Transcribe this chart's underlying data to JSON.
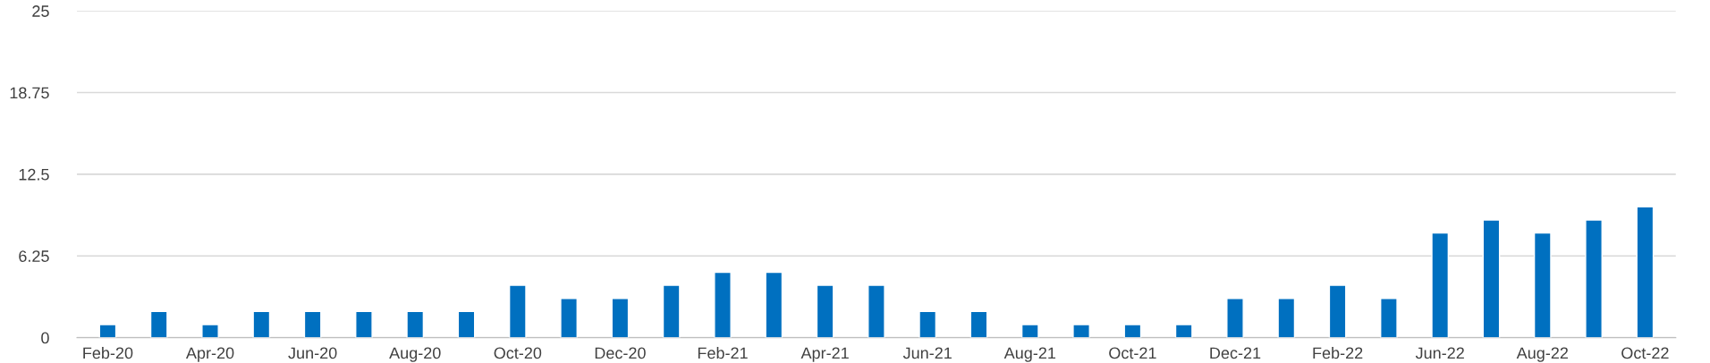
{
  "chart_data": {
    "type": "bar",
    "categories": [
      "Feb-20",
      null,
      "Apr-20",
      null,
      "Jun-20",
      null,
      "Aug-20",
      null,
      "Oct-20",
      null,
      "Dec-20",
      null,
      "Feb-21",
      null,
      "Apr-21",
      null,
      "Jun-21",
      null,
      "Aug-21",
      null,
      "Oct-21",
      null,
      "Dec-21",
      null,
      "Feb-22",
      null,
      "Jun-22",
      null,
      "Aug-22",
      null,
      "Oct-22"
    ],
    "values": [
      1,
      2,
      1,
      2,
      2,
      2,
      2,
      2,
      4,
      3,
      3,
      4,
      5,
      5,
      4,
      4,
      2,
      2,
      1,
      1,
      1,
      1,
      3,
      3,
      4,
      3,
      8,
      9,
      8,
      9,
      10
    ],
    "color": "#0070c0",
    "ylim": [
      0,
      25
    ],
    "yticks": [
      0,
      6.25,
      12.5,
      18.75,
      25
    ],
    "grid": "y"
  }
}
